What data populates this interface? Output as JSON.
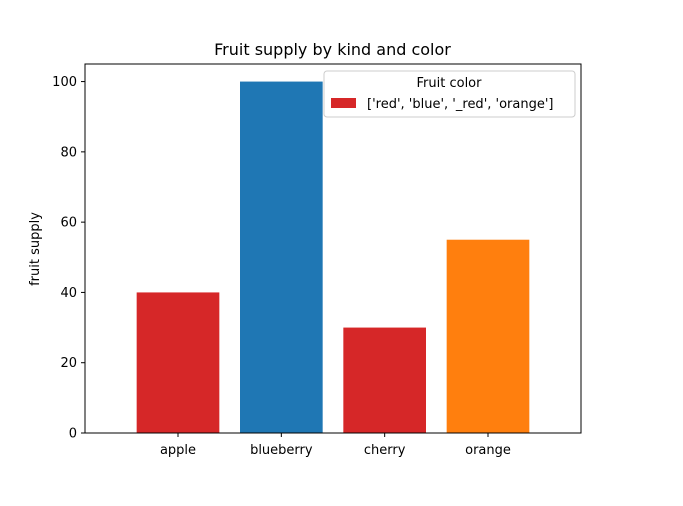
{
  "chart_data": {
    "type": "bar",
    "title": "Fruit supply by kind and color",
    "xlabel": "",
    "ylabel": "fruit supply",
    "categories": [
      "apple",
      "blueberry",
      "cherry",
      "orange"
    ],
    "values": [
      40,
      100,
      30,
      55
    ],
    "bar_colors": [
      "#d62728",
      "#1f77b4",
      "#d62728",
      "#ff7f0e"
    ],
    "ylim": [
      0,
      105
    ],
    "yticks": [
      0,
      20,
      40,
      60,
      80,
      100
    ],
    "grid": false,
    "legend": {
      "title": "Fruit color",
      "placement": "upper-right",
      "entries": [
        {
          "label": "['red', 'blue', '_red', 'orange']",
          "color": "#d62728"
        }
      ]
    }
  }
}
